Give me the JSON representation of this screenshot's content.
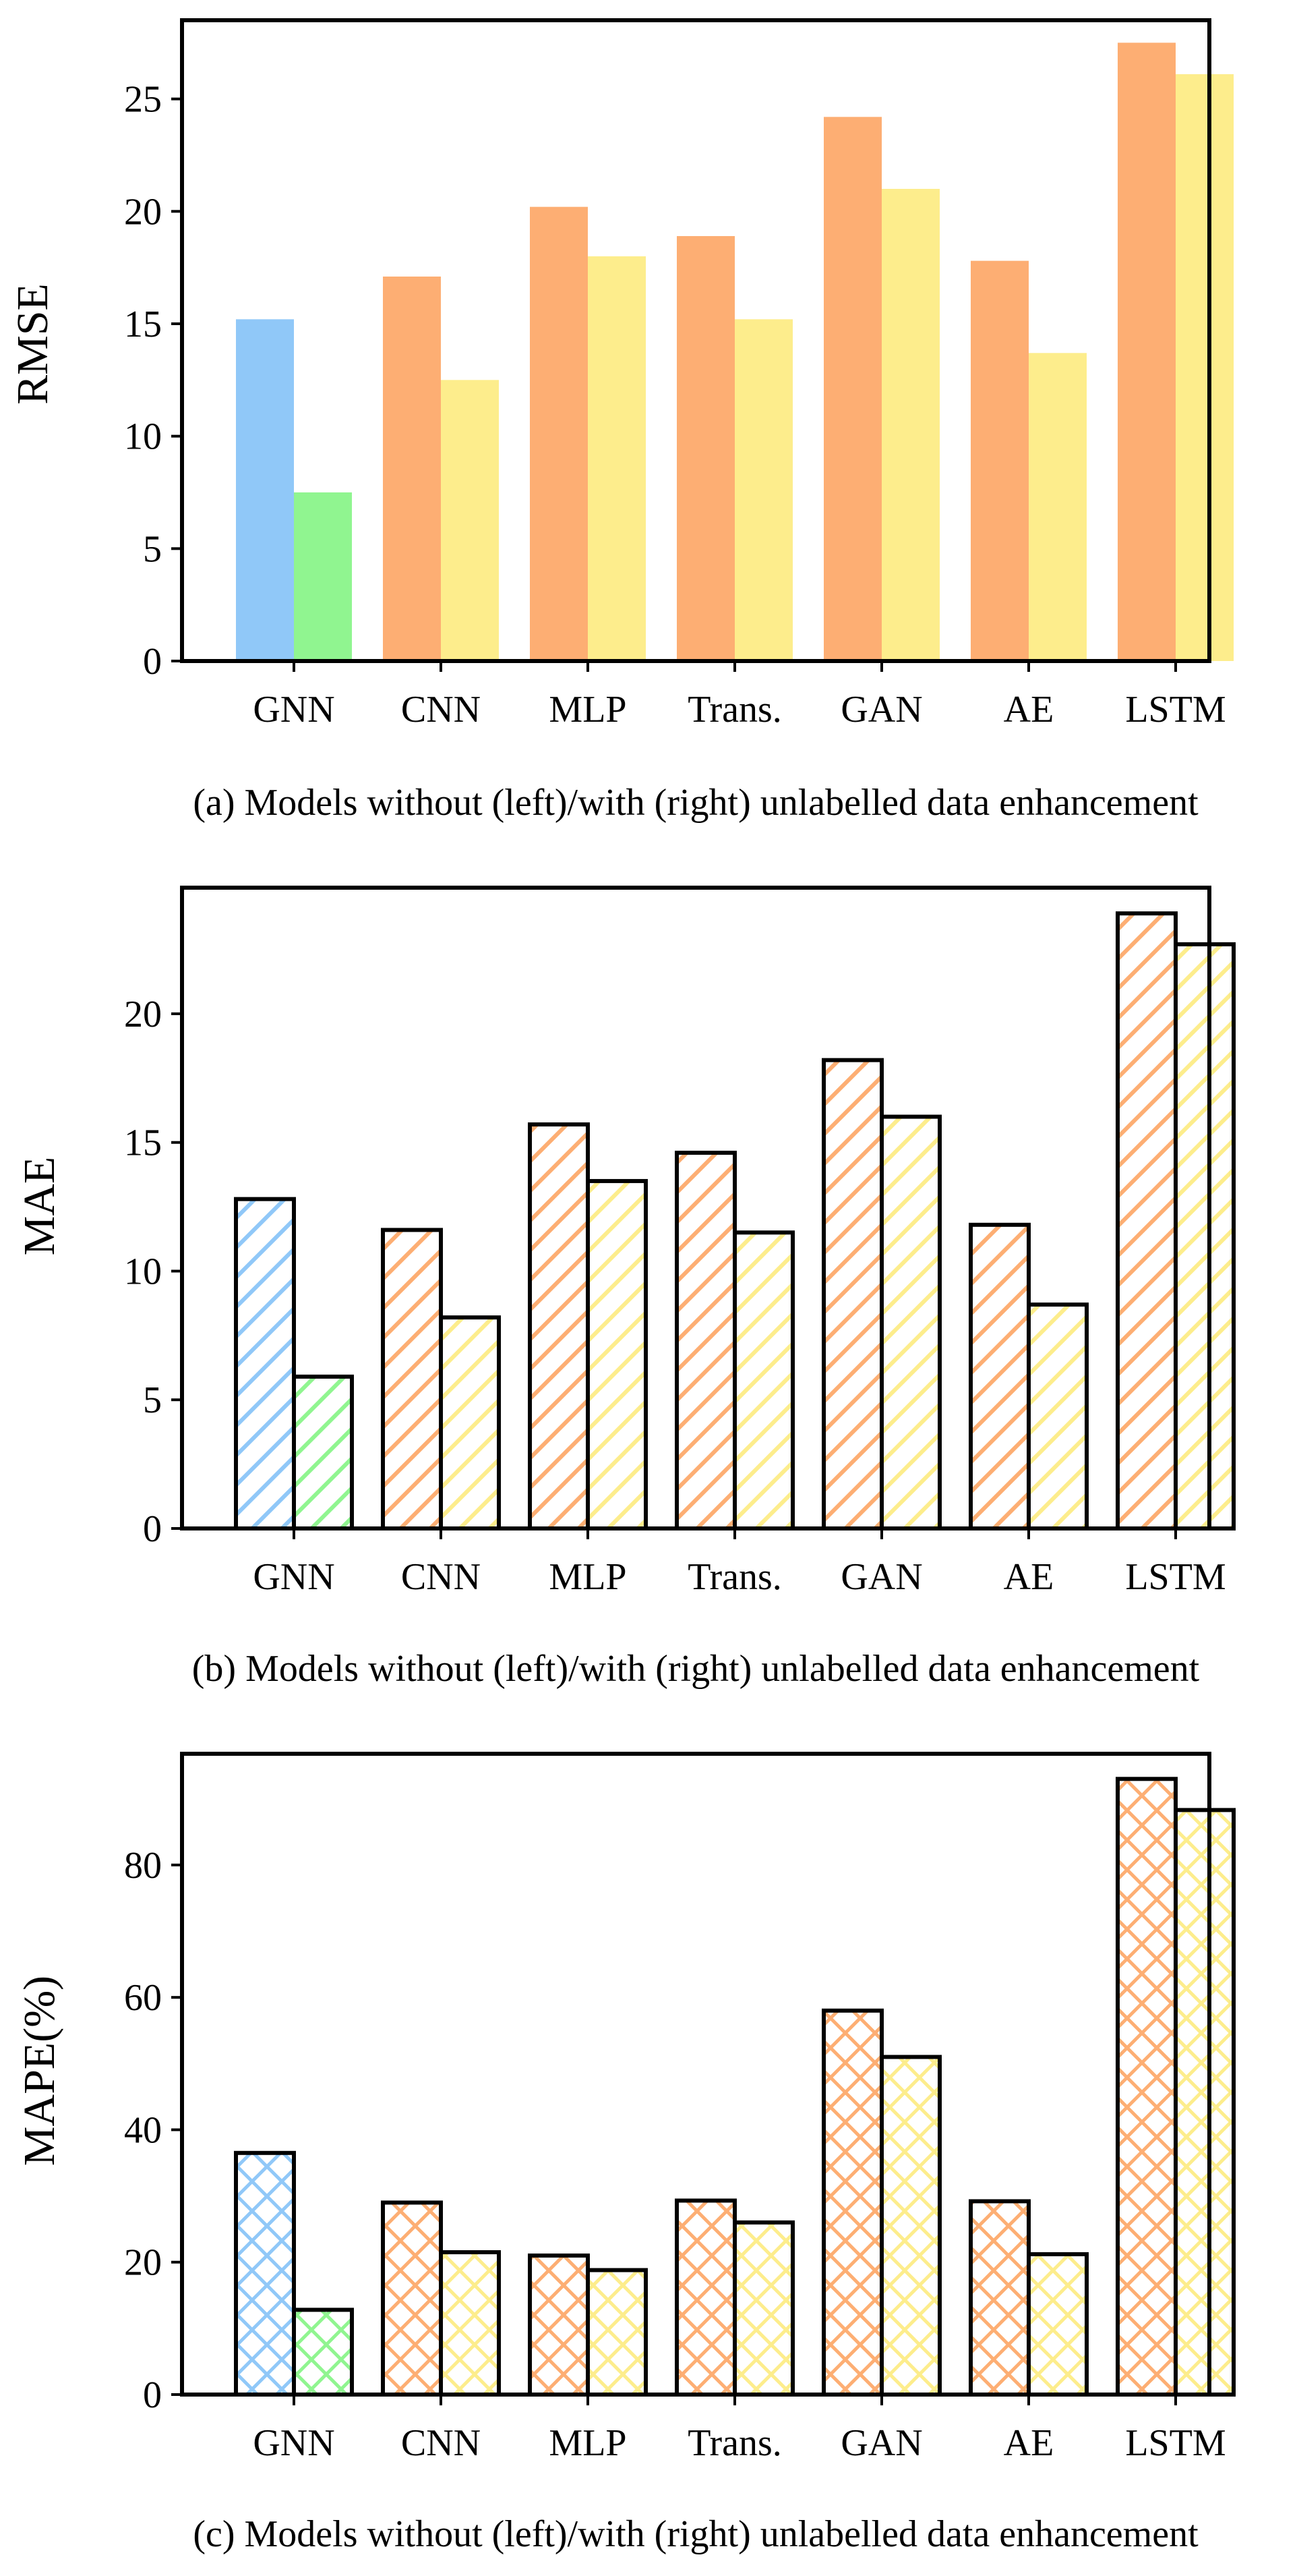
{
  "chart_data": [
    {
      "type": "bar",
      "panel": "a",
      "fill_style": "solid",
      "categories": [
        "GNN",
        "CNN",
        "MLP",
        "Trans.",
        "GAN",
        "AE",
        "LSTM"
      ],
      "series": [
        {
          "name": "without unlabelled data enhancement",
          "values": [
            15.2,
            17.1,
            20.2,
            18.9,
            24.2,
            17.8,
            27.5
          ]
        },
        {
          "name": "with unlabelled data enhancement",
          "values": [
            7.5,
            12.5,
            18.0,
            15.2,
            21.0,
            13.7,
            26.1
          ]
        }
      ],
      "ylabel": "RMSE",
      "xlabel": "",
      "ylim": [
        0,
        28.5
      ],
      "yticks": [
        0,
        5,
        10,
        15,
        20,
        25
      ],
      "caption": "(a) Models without (left)/with (right) unlabelled data enhancement"
    },
    {
      "type": "bar",
      "panel": "b",
      "fill_style": "diagonal-hatch",
      "categories": [
        "GNN",
        "CNN",
        "MLP",
        "Trans.",
        "GAN",
        "AE",
        "LSTM"
      ],
      "series": [
        {
          "name": "without unlabelled data enhancement",
          "values": [
            12.8,
            11.6,
            15.7,
            14.6,
            18.2,
            11.8,
            23.9
          ]
        },
        {
          "name": "with unlabelled data enhancement",
          "values": [
            5.9,
            8.2,
            13.5,
            11.5,
            16.0,
            8.7,
            22.7
          ]
        }
      ],
      "ylabel": "MAE",
      "xlabel": "",
      "ylim": [
        0,
        24.9
      ],
      "yticks": [
        0,
        5,
        10,
        15,
        20
      ],
      "caption": "(b) Models without (left)/with (right) unlabelled data enhancement"
    },
    {
      "type": "bar",
      "panel": "c",
      "fill_style": "cross-hatch",
      "categories": [
        "GNN",
        "CNN",
        "MLP",
        "Trans.",
        "GAN",
        "AE",
        "LSTM"
      ],
      "series": [
        {
          "name": "without unlabelled data enhancement",
          "values": [
            36.5,
            29.0,
            21.0,
            29.3,
            58.0,
            29.2,
            93.0
          ]
        },
        {
          "name": "with unlabelled data enhancement",
          "values": [
            12.8,
            21.5,
            18.8,
            26.0,
            51.0,
            21.2,
            88.3
          ]
        }
      ],
      "ylabel": "MAPE(%)",
      "xlabel": "",
      "ylim": [
        0,
        96.8
      ],
      "yticks": [
        0,
        20,
        40,
        60,
        80
      ],
      "caption": "(c) Models without (left)/with (right) unlabelled data enhancement"
    }
  ],
  "colors": {
    "gnn_without": "#90c8f8",
    "gnn_with": "#90f590",
    "others_without": "#fdae73",
    "others_with": "#fded8c",
    "axis": "#000000",
    "background": "#ffffff"
  }
}
